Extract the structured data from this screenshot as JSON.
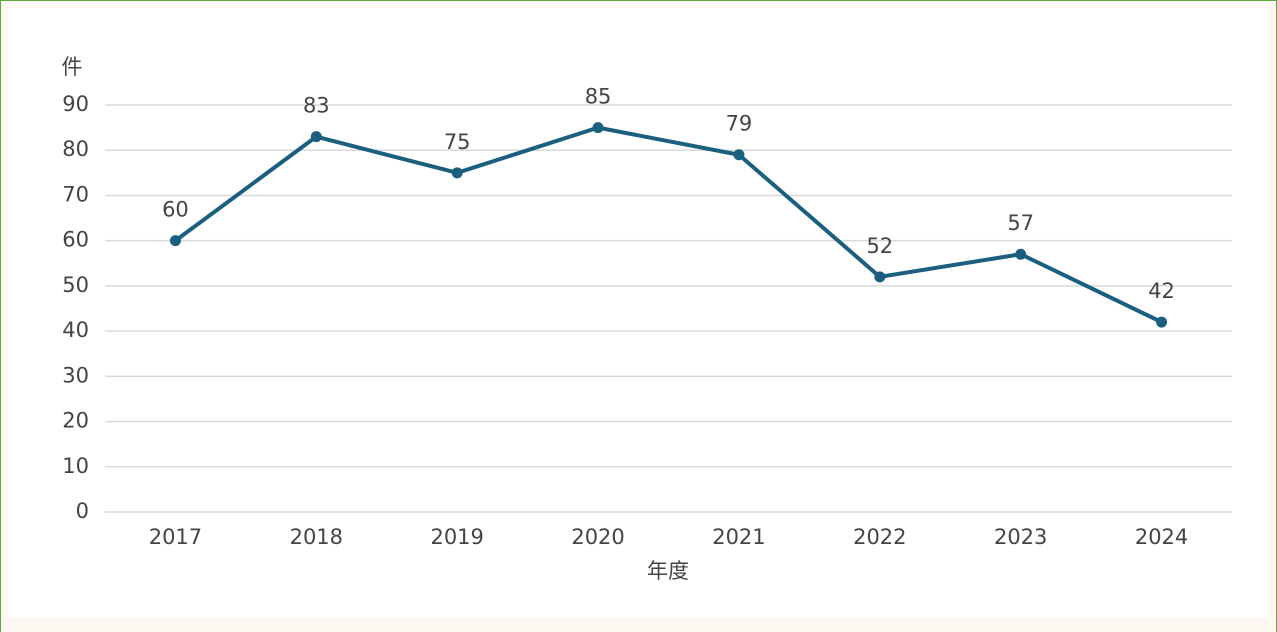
{
  "chart_data": {
    "type": "line",
    "y_label": "件",
    "x_label": "年度",
    "categories": [
      "2017",
      "2018",
      "2019",
      "2020",
      "2021",
      "2022",
      "2023",
      "2024"
    ],
    "series": [
      {
        "name": null,
        "color": "#1b5f80",
        "values": [
          60,
          83,
          75,
          85,
          79,
          52,
          57,
          42
        ]
      }
    ],
    "ylim": [
      0,
      90
    ],
    "yticks": [
      0,
      10,
      20,
      30,
      40,
      50,
      60,
      70,
      80,
      90
    ],
    "grid": true
  }
}
